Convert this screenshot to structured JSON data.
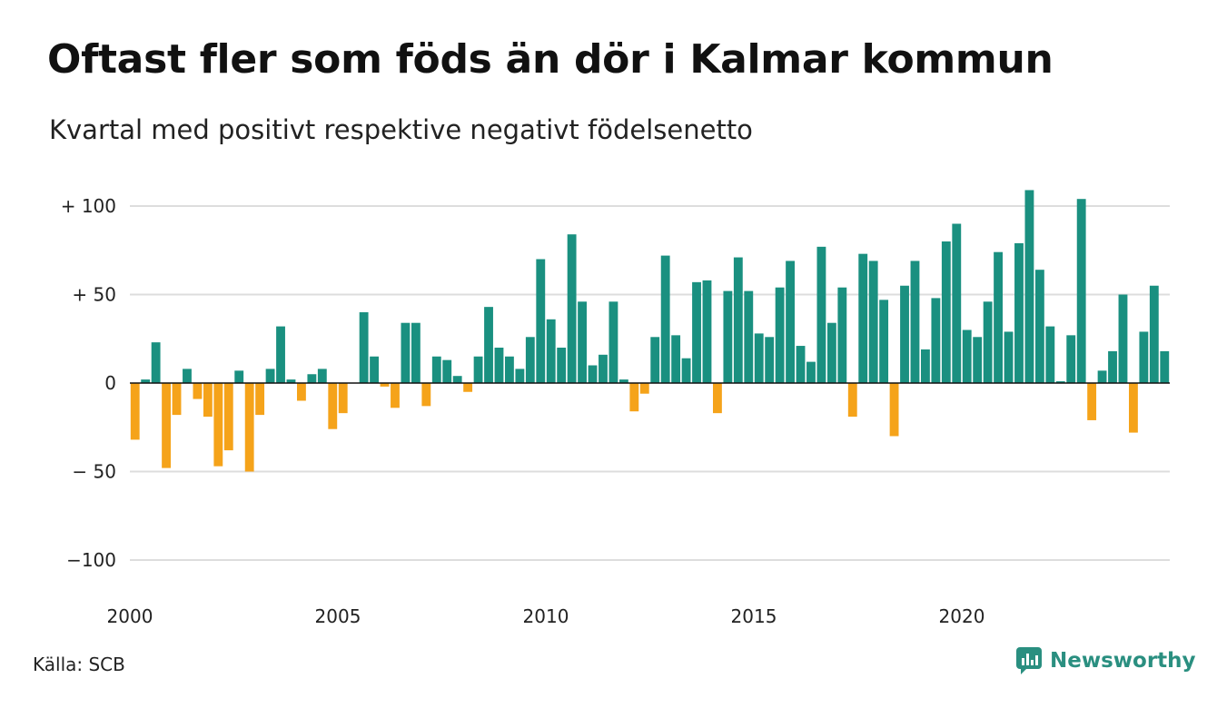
{
  "title": "Oftast fler som föds än dör i Kalmar kommun",
  "subtitle": "Kvartal med positivt respektive negativt födelsenetto",
  "source": "Källa: SCB",
  "brand": "Newsworthy",
  "colors": {
    "positive": "#1a9080",
    "negative": "#f5a31a",
    "grid": "#dddddd",
    "baseline": "#111111",
    "brand": "#2a8f80"
  },
  "chart_data": {
    "type": "bar",
    "x_start": "2000 Q1",
    "x_ticks": [
      "2000",
      "2005",
      "2010",
      "2015",
      "2020"
    ],
    "y_ticks": [
      "+ 100",
      "+  50",
      "0",
      "− 50",
      "−100"
    ],
    "ylim": [
      -100,
      110
    ],
    "grid": true,
    "values": [
      -32,
      2,
      23,
      -48,
      -18,
      8,
      -9,
      -19,
      -47,
      -38,
      7,
      -50,
      -18,
      8,
      32,
      2,
      -10,
      5,
      8,
      -26,
      -17,
      0,
      40,
      15,
      -2,
      -14,
      34,
      34,
      -13,
      15,
      13,
      4,
      -5,
      15,
      43,
      20,
      15,
      8,
      26,
      70,
      36,
      20,
      84,
      46,
      10,
      16,
      46,
      2,
      -16,
      -6,
      26,
      72,
      27,
      14,
      57,
      58,
      -17,
      52,
      71,
      52,
      28,
      26,
      54,
      69,
      21,
      12,
      77,
      34,
      54,
      -19,
      73,
      69,
      47,
      -30,
      55,
      69,
      19,
      48,
      80,
      90,
      30,
      26,
      46,
      74,
      29,
      79,
      109,
      64,
      32,
      1,
      27,
      104,
      -21,
      7,
      18,
      50,
      -28,
      29,
      55,
      18
    ]
  }
}
